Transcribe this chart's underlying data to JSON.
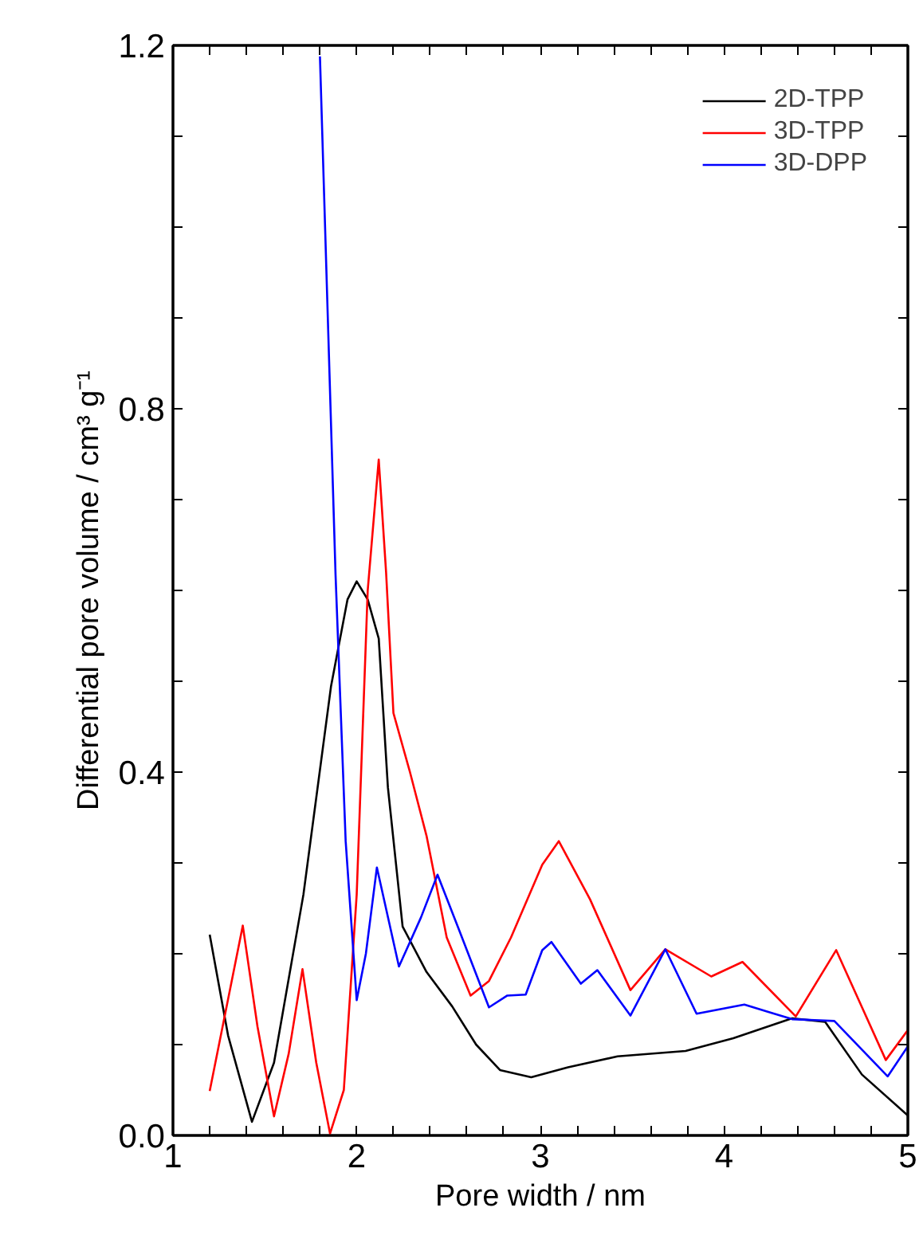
{
  "chart_data": {
    "type": "line",
    "xlabel": "Pore width / nm",
    "ylabel": "Differential pore volume / cm³ g⁻¹",
    "xlim": [
      1,
      5
    ],
    "ylim": [
      0,
      1.2
    ],
    "xticks": [
      1,
      {
        "value": 1.2,
        "label": null
      },
      {
        "value": 1.4,
        "label": null
      },
      {
        "value": 1.6,
        "label": null
      },
      {
        "value": 1.8,
        "label": null
      },
      2,
      {
        "value": 2.2,
        "label": null
      },
      {
        "value": 2.4,
        "label": null
      },
      {
        "value": 2.6,
        "label": null
      },
      {
        "value": 2.8,
        "label": null
      },
      3,
      {
        "value": 3.2,
        "label": null
      },
      {
        "value": 3.4,
        "label": null
      },
      {
        "value": 3.6,
        "label": null
      },
      {
        "value": 3.8,
        "label": null
      },
      4,
      {
        "value": 4.2,
        "label": null
      },
      {
        "value": 4.4,
        "label": null
      },
      {
        "value": 4.6,
        "label": null
      },
      {
        "value": 4.8,
        "label": null
      },
      5
    ],
    "yticks": [
      {
        "value": 0,
        "label": "0.0"
      },
      {
        "value": 0.1,
        "label": null
      },
      {
        "value": 0.2,
        "label": null
      },
      {
        "value": 0.3,
        "label": null
      },
      0.4,
      {
        "value": 0.5,
        "label": null
      },
      {
        "value": 0.6,
        "label": null
      },
      {
        "value": 0.7,
        "label": null
      },
      0.8,
      {
        "value": 0.9,
        "label": null
      },
      {
        "value": 1.0,
        "label": null
      },
      {
        "value": 1.1,
        "label": null
      },
      1.2
    ],
    "grid": false,
    "legend": "top right",
    "line_style": "solid",
    "marker": "none",
    "series": [
      {
        "name": "2D-TPP",
        "color": "#000000",
        "x": [
          1.2,
          1.3,
          1.43,
          1.55,
          1.71,
          1.86,
          1.95,
          2.0,
          2.06,
          2.12,
          2.17,
          2.25,
          2.38,
          2.52,
          2.65,
          2.78,
          2.95,
          3.15,
          3.42,
          3.79,
          4.05,
          4.37,
          4.55,
          4.75,
          5.0
        ],
        "values": [
          0.221,
          0.11,
          0.015,
          0.08,
          0.265,
          0.494,
          0.59,
          0.61,
          0.59,
          0.547,
          0.383,
          0.23,
          0.18,
          0.142,
          0.1,
          0.072,
          0.064,
          0.075,
          0.087,
          0.093,
          0.107,
          0.129,
          0.125,
          0.067,
          0.022
        ]
      },
      {
        "name": "3D-TPP",
        "color": "#ff0000",
        "x": [
          1.2,
          1.3,
          1.38,
          1.46,
          1.55,
          1.63,
          1.705,
          1.78,
          1.855,
          1.93,
          2.0,
          2.06,
          2.12,
          2.16,
          2.2,
          2.29,
          2.38,
          2.49,
          2.62,
          2.72,
          2.84,
          3.01,
          3.1,
          3.27,
          3.49,
          3.68,
          3.93,
          4.1,
          4.39,
          4.61,
          4.88,
          5.0
        ],
        "values": [
          0.049,
          0.15,
          0.231,
          0.12,
          0.021,
          0.09,
          0.183,
          0.08,
          0.002,
          0.05,
          0.265,
          0.6,
          0.744,
          0.62,
          0.465,
          0.4,
          0.33,
          0.218,
          0.154,
          0.17,
          0.218,
          0.298,
          0.324,
          0.26,
          0.16,
          0.205,
          0.175,
          0.191,
          0.131,
          0.204,
          0.083,
          0.116
        ]
      },
      {
        "name": "3D-DPP",
        "color": "#0000ff",
        "x": [
          1.8,
          1.885,
          1.94,
          2.0,
          2.05,
          2.11,
          2.23,
          2.35,
          2.44,
          2.55,
          2.72,
          2.82,
          2.92,
          3.01,
          3.06,
          3.22,
          3.31,
          3.49,
          3.68,
          3.85,
          4.11,
          4.37,
          4.6,
          4.89,
          5.0
        ],
        "values": [
          1.188,
          0.617,
          0.324,
          0.149,
          0.2,
          0.295,
          0.186,
          0.24,
          0.287,
          0.23,
          0.141,
          0.154,
          0.155,
          0.204,
          0.213,
          0.167,
          0.182,
          0.132,
          0.205,
          0.134,
          0.144,
          0.128,
          0.126,
          0.065,
          0.098
        ]
      }
    ]
  }
}
